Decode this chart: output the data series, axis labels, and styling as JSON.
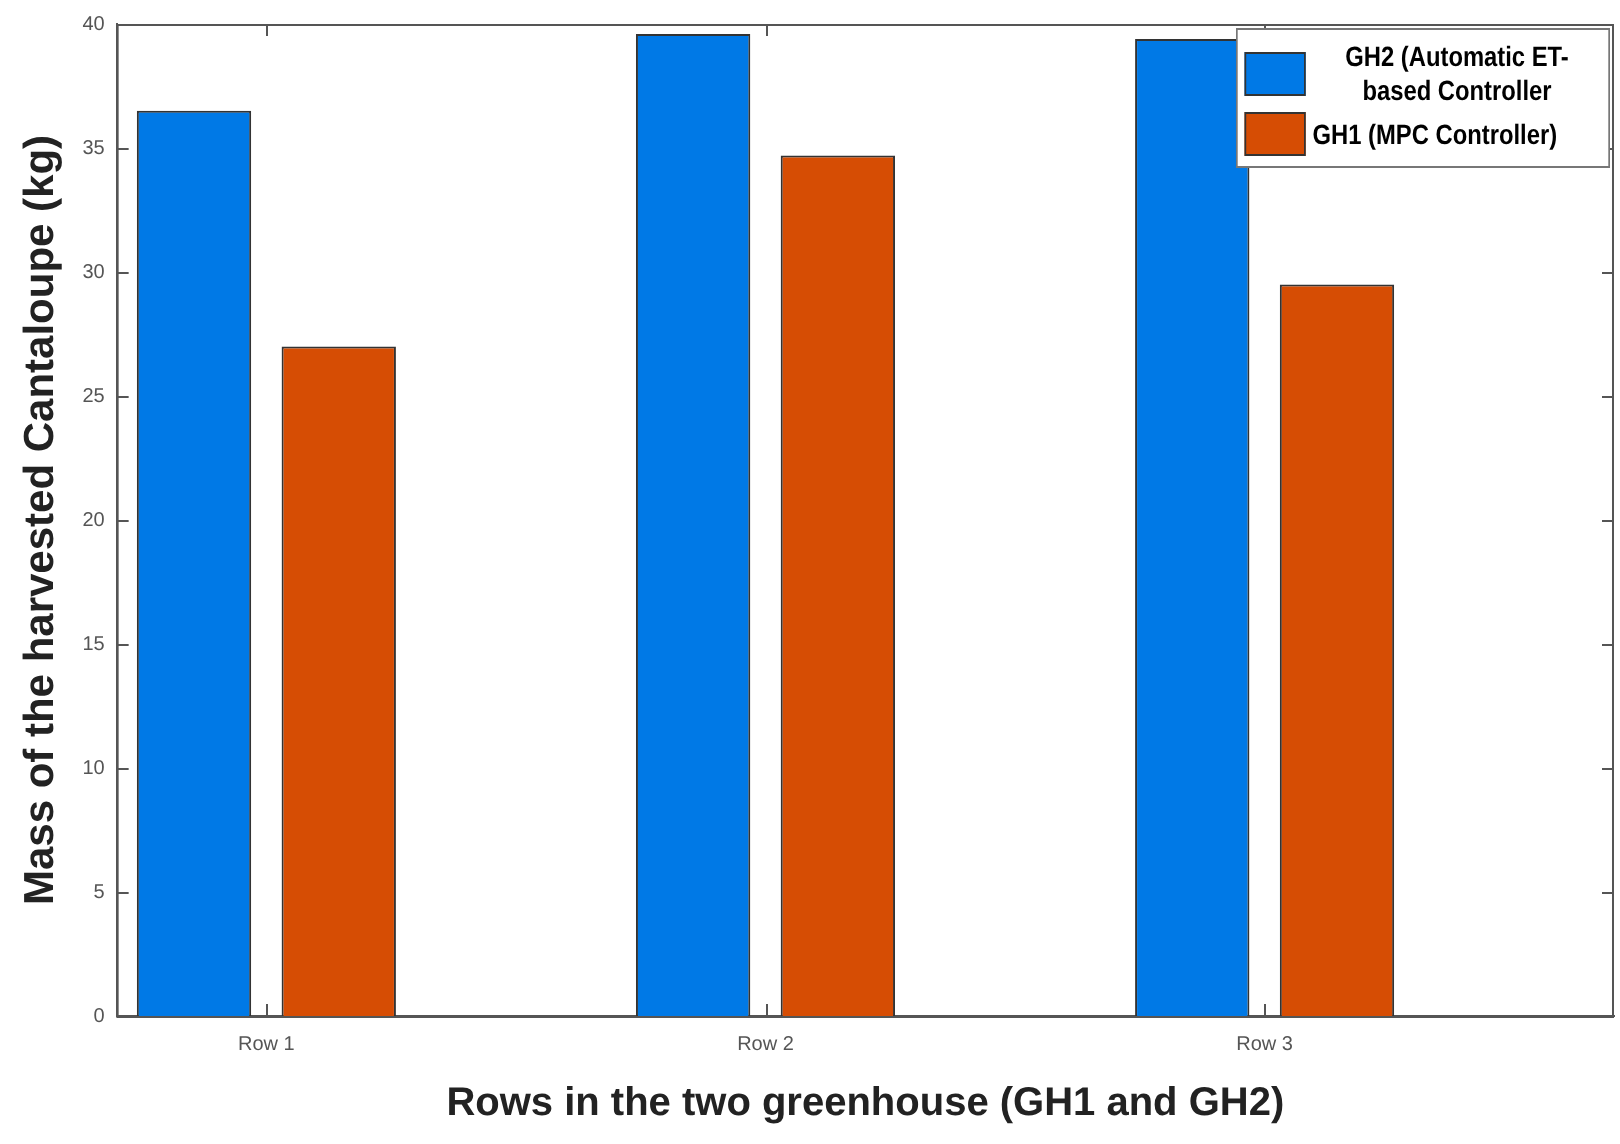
{
  "chart_data": {
    "type": "bar",
    "xlabel": "Rows in the two greenhouse (GH1 and GH2)",
    "ylabel": "Mass of the harvested Cantaloupe (kg)",
    "categories": [
      "Row 1",
      "Row 2",
      "Row 3"
    ],
    "series": [
      {
        "name": "GH2 (Automatic ET-based Controller",
        "color": "#0079e6",
        "values": [
          36.5,
          39.6,
          39.4
        ]
      },
      {
        "name": "GH1 (MPC Controller)",
        "color": "#d64d04",
        "values": [
          27.0,
          34.7,
          29.5
        ]
      }
    ],
    "ylim": [
      0,
      40
    ],
    "yticks": [
      0,
      5,
      10,
      15,
      20,
      25,
      30,
      35,
      40
    ],
    "grid": false,
    "legend": "top right"
  }
}
